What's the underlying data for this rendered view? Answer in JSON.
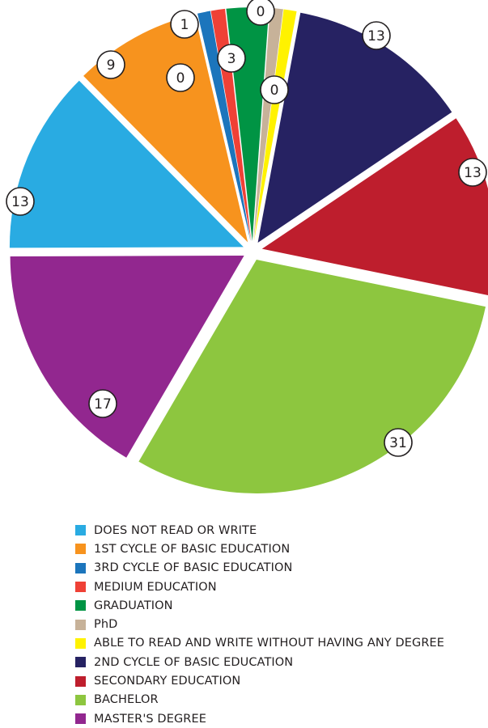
{
  "chart_data": {
    "type": "pie",
    "slices": [
      {
        "label": "DOES NOT READ OR WRITE",
        "value": 13,
        "color": "#29abe2"
      },
      {
        "label": "1ST CYCLE OF BASIC EDUCATION",
        "value": 9,
        "color": "#f7931e"
      },
      {
        "label": "3RD CYCLE OF BASIC EDUCATION",
        "value": 0,
        "color": "#1c75bc"
      },
      {
        "label": "MEDIUM EDUCATION",
        "value": 1,
        "color": "#ef4136"
      },
      {
        "label": "GRADUATION",
        "value": 3,
        "color": "#009444"
      },
      {
        "label": "PhD",
        "value": 0,
        "color": "#c7b299"
      },
      {
        "label": "ABLE TO READ AND WRITE WITHOUT HAVING ANY DEGREE",
        "value": 0,
        "color": "#fff200"
      },
      {
        "label": "2ND CYCLE OF BASIC EDUCATION",
        "value": 13,
        "color": "#262262"
      },
      {
        "label": "SECONDARY EDUCATION",
        "value": 13,
        "color": "#be1e2d"
      },
      {
        "label": "BACHELOR",
        "value": 31,
        "color": "#8dc63f"
      },
      {
        "label": "MASTER'S DEGREE",
        "value": 17,
        "color": "#92278f"
      }
    ],
    "legend_position": "bottom"
  }
}
